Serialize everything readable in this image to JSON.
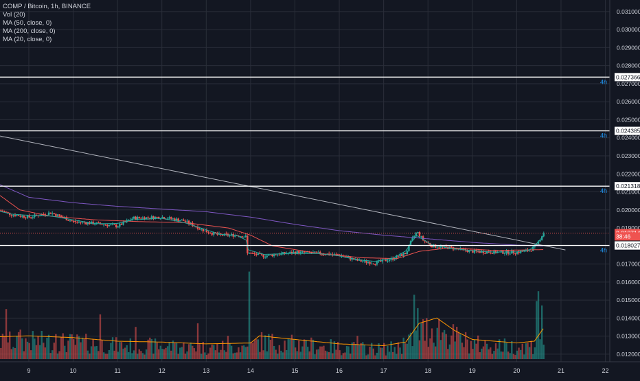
{
  "legend": {
    "symbol": "COMP / Bitcoin, 1h, BINANCE",
    "volume": "Vol (20)",
    "ma50": "MA (50, close, 0)",
    "ma200": "MA (200, close, 0)",
    "ma20": "MA (20, close, 0)"
  },
  "colors": {
    "background": "#131722",
    "grid": "#2a2e39",
    "up": "#26a69a",
    "down": "#ef5350",
    "ma50": "#ef5350",
    "ma200": "#7e57c2",
    "ma20": "#26a69a",
    "volume_ma": "#ff9800",
    "horizontal_line": "#ffffff",
    "trendline": "#b2b5be",
    "axis_text": "#d1d4dc",
    "timeframe_label": "#2196f3"
  },
  "chart_data": {
    "type": "candlestick",
    "x_axis": {
      "ticks": [
        "9",
        "10",
        "11",
        "12",
        "13",
        "14",
        "15",
        "16",
        "17",
        "18",
        "19",
        "20",
        "21",
        "22"
      ],
      "range_days": [
        8.35,
        22.1
      ]
    },
    "y_axis": {
      "ticks": [
        "0.031000",
        "0.030000",
        "0.029000",
        "0.028000",
        "0.027000",
        "0.026000",
        "0.025000",
        "0.024000",
        "0.023000",
        "0.022000",
        "0.021000",
        "0.020000",
        "0.019000",
        "0.018000",
        "0.017000",
        "0.016000",
        "0.015000",
        "0.014000",
        "0.013000",
        "0.012000"
      ],
      "range": [
        0.01173,
        0.0313
      ]
    },
    "price_keypoints": [
      [
        8.35,
        0.01998
      ],
      [
        8.6,
        0.01975
      ],
      [
        9.0,
        0.0196
      ],
      [
        9.5,
        0.01985
      ],
      [
        10.0,
        0.01935
      ],
      [
        10.5,
        0.01925
      ],
      [
        11.0,
        0.0191
      ],
      [
        11.35,
        0.01955
      ],
      [
        12.0,
        0.0196
      ],
      [
        12.5,
        0.0194
      ],
      [
        13.0,
        0.0188
      ],
      [
        13.3,
        0.0186
      ],
      [
        13.7,
        0.0186
      ],
      [
        13.92,
        0.0185
      ],
      [
        13.95,
        0.0176
      ],
      [
        14.3,
        0.01745
      ],
      [
        15.0,
        0.01765
      ],
      [
        15.5,
        0.0176
      ],
      [
        16.0,
        0.0175
      ],
      [
        16.4,
        0.0172
      ],
      [
        16.8,
        0.01705
      ],
      [
        17.2,
        0.0173
      ],
      [
        17.5,
        0.0176
      ],
      [
        17.65,
        0.0184
      ],
      [
        17.75,
        0.0188
      ],
      [
        17.9,
        0.0183
      ],
      [
        18.1,
        0.018
      ],
      [
        18.5,
        0.0179
      ],
      [
        19.0,
        0.0177
      ],
      [
        19.5,
        0.01765
      ],
      [
        20.0,
        0.01765
      ],
      [
        20.3,
        0.01775
      ],
      [
        20.45,
        0.01805
      ],
      [
        20.6,
        0.01871
      ]
    ],
    "ma200_keypoints": [
      [
        8.35,
        0.0214
      ],
      [
        9.0,
        0.0207
      ],
      [
        10.0,
        0.0204
      ],
      [
        11.0,
        0.0202
      ],
      [
        12.0,
        0.02005
      ],
      [
        13.0,
        0.0199
      ],
      [
        14.0,
        0.0196
      ],
      [
        15.0,
        0.0192
      ],
      [
        16.0,
        0.01885
      ],
      [
        17.0,
        0.0186
      ],
      [
        18.0,
        0.0184
      ],
      [
        19.0,
        0.0182
      ],
      [
        20.0,
        0.01805
      ],
      [
        20.6,
        0.018
      ]
    ],
    "ma50_keypoints": [
      [
        8.35,
        0.0208
      ],
      [
        8.8,
        0.02
      ],
      [
        9.5,
        0.01965
      ],
      [
        10.5,
        0.01945
      ],
      [
        11.5,
        0.01935
      ],
      [
        12.5,
        0.0193
      ],
      [
        13.5,
        0.019
      ],
      [
        14.0,
        0.0186
      ],
      [
        14.5,
        0.018
      ],
      [
        15.5,
        0.0176
      ],
      [
        16.5,
        0.01735
      ],
      [
        17.3,
        0.0173
      ],
      [
        17.8,
        0.0177
      ],
      [
        18.5,
        0.0179
      ],
      [
        19.5,
        0.01775
      ],
      [
        20.6,
        0.0178
      ]
    ],
    "volume_ma_keypoints": [
      [
        8.35,
        0.25
      ],
      [
        9.0,
        0.26
      ],
      [
        10.0,
        0.24
      ],
      [
        11.0,
        0.2
      ],
      [
        12.0,
        0.19
      ],
      [
        13.0,
        0.17
      ],
      [
        14.0,
        0.18
      ],
      [
        14.2,
        0.26
      ],
      [
        15.0,
        0.22
      ],
      [
        16.0,
        0.17
      ],
      [
        17.0,
        0.15
      ],
      [
        17.5,
        0.19
      ],
      [
        17.8,
        0.4
      ],
      [
        18.2,
        0.46
      ],
      [
        18.6,
        0.32
      ],
      [
        19.0,
        0.22
      ],
      [
        19.5,
        0.2
      ],
      [
        20.0,
        0.18
      ],
      [
        20.4,
        0.2
      ],
      [
        20.6,
        0.34
      ]
    ],
    "volume_spikes": [
      [
        8.5,
        0.56
      ],
      [
        8.8,
        0.33
      ],
      [
        9.6,
        0.28
      ],
      [
        10.6,
        0.5
      ],
      [
        11.4,
        0.36
      ],
      [
        12.3,
        0.18
      ],
      [
        12.8,
        0.4
      ],
      [
        13.5,
        0.26
      ],
      [
        13.95,
        0.98
      ],
      [
        14.4,
        0.28
      ],
      [
        15.2,
        0.22
      ],
      [
        16.4,
        0.26
      ],
      [
        17.45,
        0.24
      ],
      [
        17.7,
        0.72
      ],
      [
        17.75,
        0.57
      ],
      [
        17.85,
        0.4
      ],
      [
        18.4,
        0.28
      ],
      [
        20.45,
        0.65
      ],
      [
        20.5,
        0.76
      ],
      [
        20.58,
        0.6
      ]
    ],
    "horizontal_levels": [
      {
        "value": 0.027366,
        "label": "0.027366",
        "timeframe": "4h"
      },
      {
        "value": 0.024385,
        "label": "0.024385",
        "timeframe": "4h"
      },
      {
        "value": 0.021318,
        "label": "0.021318",
        "timeframe": "4h"
      },
      {
        "value": 0.01803,
        "label": "0.018030",
        "timeframe": "4h"
      }
    ],
    "trendline": {
      "x1": 8.35,
      "y1": 0.0241,
      "x2": 21.1,
      "y2": 0.01778
    },
    "price_markers": [
      {
        "label": "0.018714",
        "value": 0.018714,
        "color": "#ef5350"
      },
      {
        "label": "38:46",
        "value": 0.01853,
        "color": "#ef5350"
      },
      {
        "label": "0.018027",
        "value": 0.018027,
        "color": "#ffffff"
      }
    ]
  }
}
